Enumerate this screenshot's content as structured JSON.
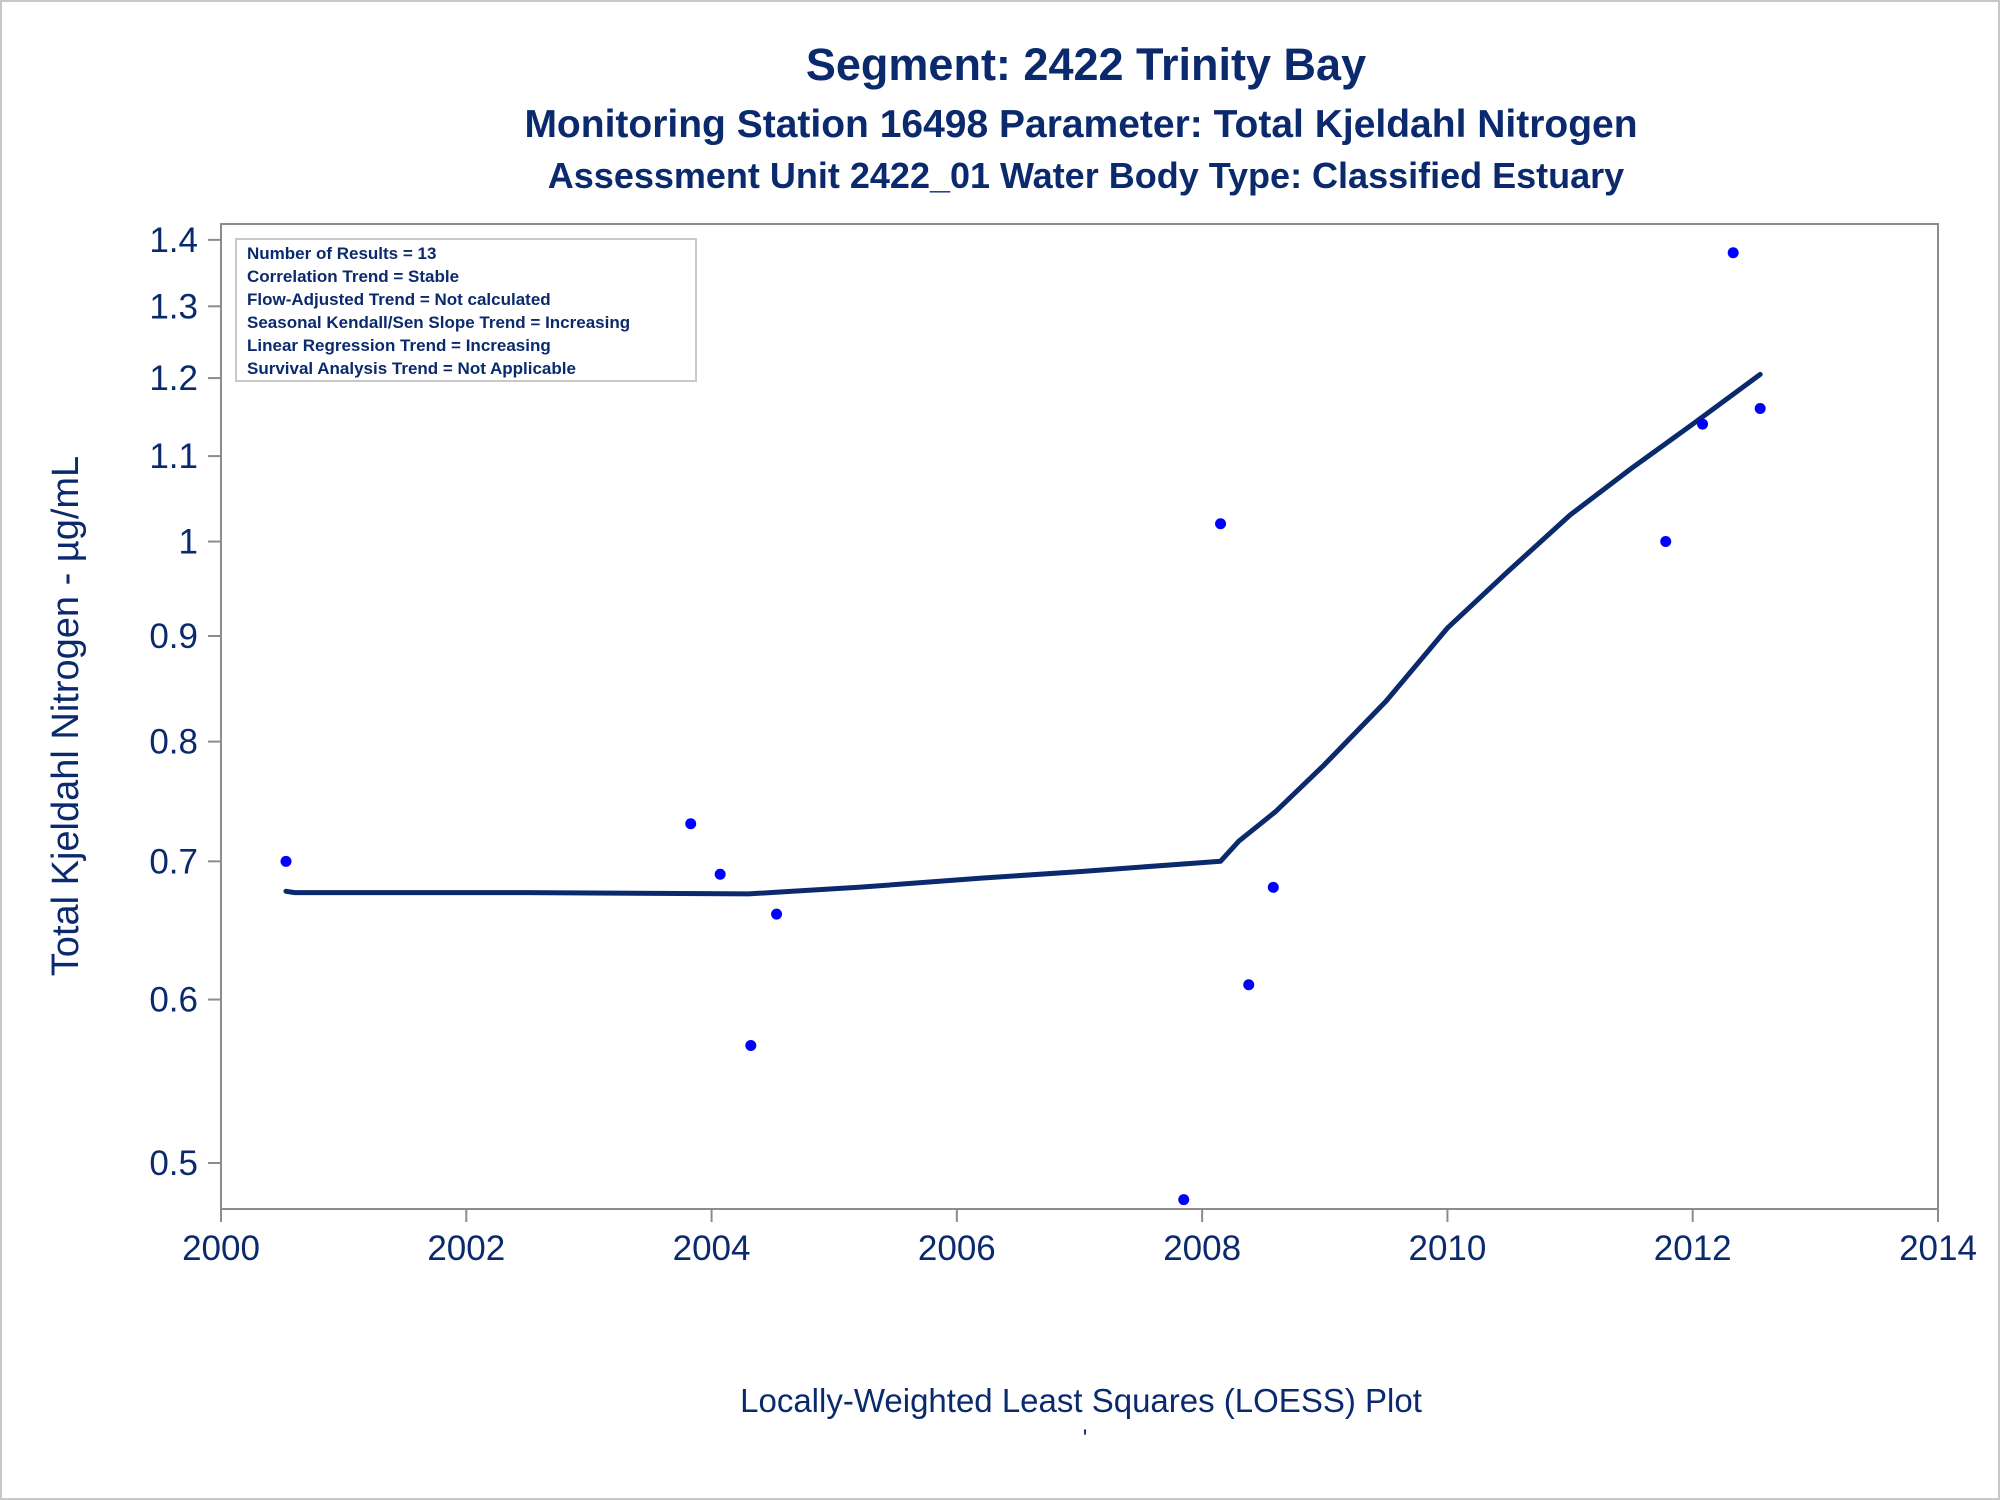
{
  "colors": {
    "title": "#0b2a6e",
    "line": "#0b2a6e",
    "points": "#0000ff",
    "axis": "#8c8c8c",
    "frame": "#c8c8c8"
  },
  "chart_data": {
    "type": "scatter",
    "title": "Segment: 2422  Trinity Bay",
    "subtitle": "Monitoring Station 16498 Parameter: Total Kjeldahl Nitrogen",
    "subtitle2": "Assessment Unit 2422_01   Water Body Type: Classified Estuary",
    "xlabel": "Locally-Weighted Least Squares (LOESS) Plot",
    "footnote": "'",
    "ylabel": "Total Kjeldahl Nitrogen -  µg/mL",
    "y_scale": "log",
    "xlim": [
      2000,
      2014
    ],
    "ylim": [
      0.475,
      1.425
    ],
    "x_ticks": [
      "2000",
      "2002",
      "2004",
      "2006",
      "2008",
      "2010",
      "2012",
      "2014"
    ],
    "y_ticks": [
      "0.5",
      "0.6",
      "0.7",
      "0.8",
      "0.9",
      "1",
      "1.1",
      "1.2",
      "1.3",
      "1.4"
    ],
    "stats_box": [
      "Number of Results = 13",
      "Correlation Trend = Stable",
      "Flow-Adjusted Trend = Not calculated",
      "Seasonal Kendall/Sen Slope Trend = Increasing",
      "Linear Regression Trend = Increasing",
      "Survival Analysis Trend = Not Applicable"
    ],
    "series": [
      {
        "type": "scatter",
        "points": [
          {
            "x": 2000.53,
            "y": 0.7
          },
          {
            "x": 2003.83,
            "y": 0.73
          },
          {
            "x": 2004.07,
            "y": 0.69
          },
          {
            "x": 2004.32,
            "y": 0.57
          },
          {
            "x": 2004.53,
            "y": 0.66
          },
          {
            "x": 2007.85,
            "y": 0.48
          },
          {
            "x": 2008.15,
            "y": 1.02
          },
          {
            "x": 2008.38,
            "y": 0.61
          },
          {
            "x": 2008.58,
            "y": 0.68
          },
          {
            "x": 2011.78,
            "y": 1.0
          },
          {
            "x": 2012.08,
            "y": 1.14
          },
          {
            "x": 2012.33,
            "y": 1.38
          },
          {
            "x": 2012.55,
            "y": 1.16
          }
        ]
      },
      {
        "type": "line",
        "points": [
          {
            "x": 2000.53,
            "y": 0.677
          },
          {
            "x": 2000.6,
            "y": 0.676
          },
          {
            "x": 2002.5,
            "y": 0.676
          },
          {
            "x": 2004.3,
            "y": 0.675
          },
          {
            "x": 2005.2,
            "y": 0.68
          },
          {
            "x": 2006.2,
            "y": 0.687
          },
          {
            "x": 2007.0,
            "y": 0.692
          },
          {
            "x": 2008.0,
            "y": 0.699
          },
          {
            "x": 2008.15,
            "y": 0.7
          },
          {
            "x": 2008.3,
            "y": 0.716
          },
          {
            "x": 2008.6,
            "y": 0.74
          },
          {
            "x": 2009.0,
            "y": 0.78
          },
          {
            "x": 2009.5,
            "y": 0.837
          },
          {
            "x": 2010.0,
            "y": 0.908
          },
          {
            "x": 2010.5,
            "y": 0.968
          },
          {
            "x": 2011.0,
            "y": 1.03
          },
          {
            "x": 2011.5,
            "y": 1.085
          },
          {
            "x": 2012.0,
            "y": 1.14
          },
          {
            "x": 2012.55,
            "y": 1.205
          }
        ]
      }
    ]
  }
}
